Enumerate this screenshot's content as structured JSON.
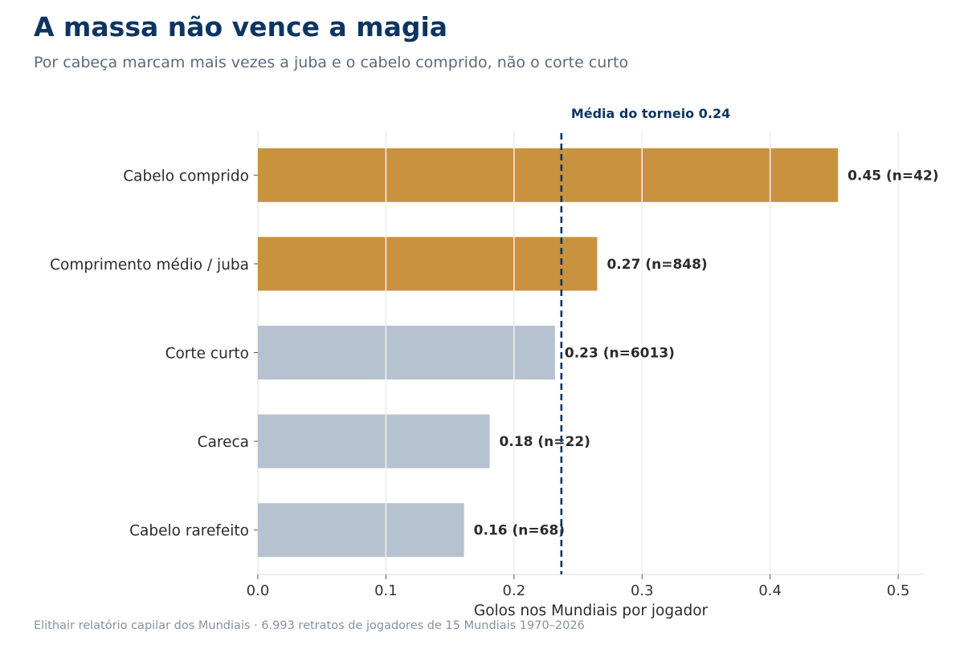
{
  "header": {
    "title": "A massa não vence a magia",
    "subtitle": "Por cabeça marcam mais vezes a juba e o cabelo comprido, não o corte curto"
  },
  "footer": {
    "source": "Elithair relatório capilar dos Mundiais  ·  6.993 retratos de jogadores de 15 Mundiais 1970–2026"
  },
  "chart_data": {
    "type": "bar",
    "orientation": "horizontal",
    "categories": [
      "Cabelo comprido",
      "Comprimento médio / juba",
      "Corte curto",
      "Careca",
      "Cabelo rarefeito"
    ],
    "values": [
      0.453,
      0.265,
      0.232,
      0.181,
      0.161
    ],
    "n": [
      42,
      848,
      6013,
      22,
      68
    ],
    "data_labels": [
      "0.45  (n=42)",
      "0.27  (n=848)",
      "0.23  (n=6013)",
      "0.18  (n=22)",
      "0.16  (n=68)"
    ],
    "highlight": [
      true,
      true,
      false,
      false,
      false
    ],
    "xlabel": "Golos nos Mundiais por jogador",
    "xlim": [
      0,
      0.52
    ],
    "xticks": [
      0.0,
      0.1,
      0.2,
      0.3,
      0.4,
      0.5
    ],
    "xtick_labels": [
      "0.0",
      "0.1",
      "0.2",
      "0.3",
      "0.4",
      "0.5"
    ],
    "grid": "vertical",
    "reference_line": {
      "value": 0.237,
      "label": "Média do torneio 0.24"
    },
    "colors": {
      "highlight": "#c8923f",
      "base": "#b6c2cf",
      "reference": "#0d3562",
      "grid": "#eeeeee"
    }
  }
}
